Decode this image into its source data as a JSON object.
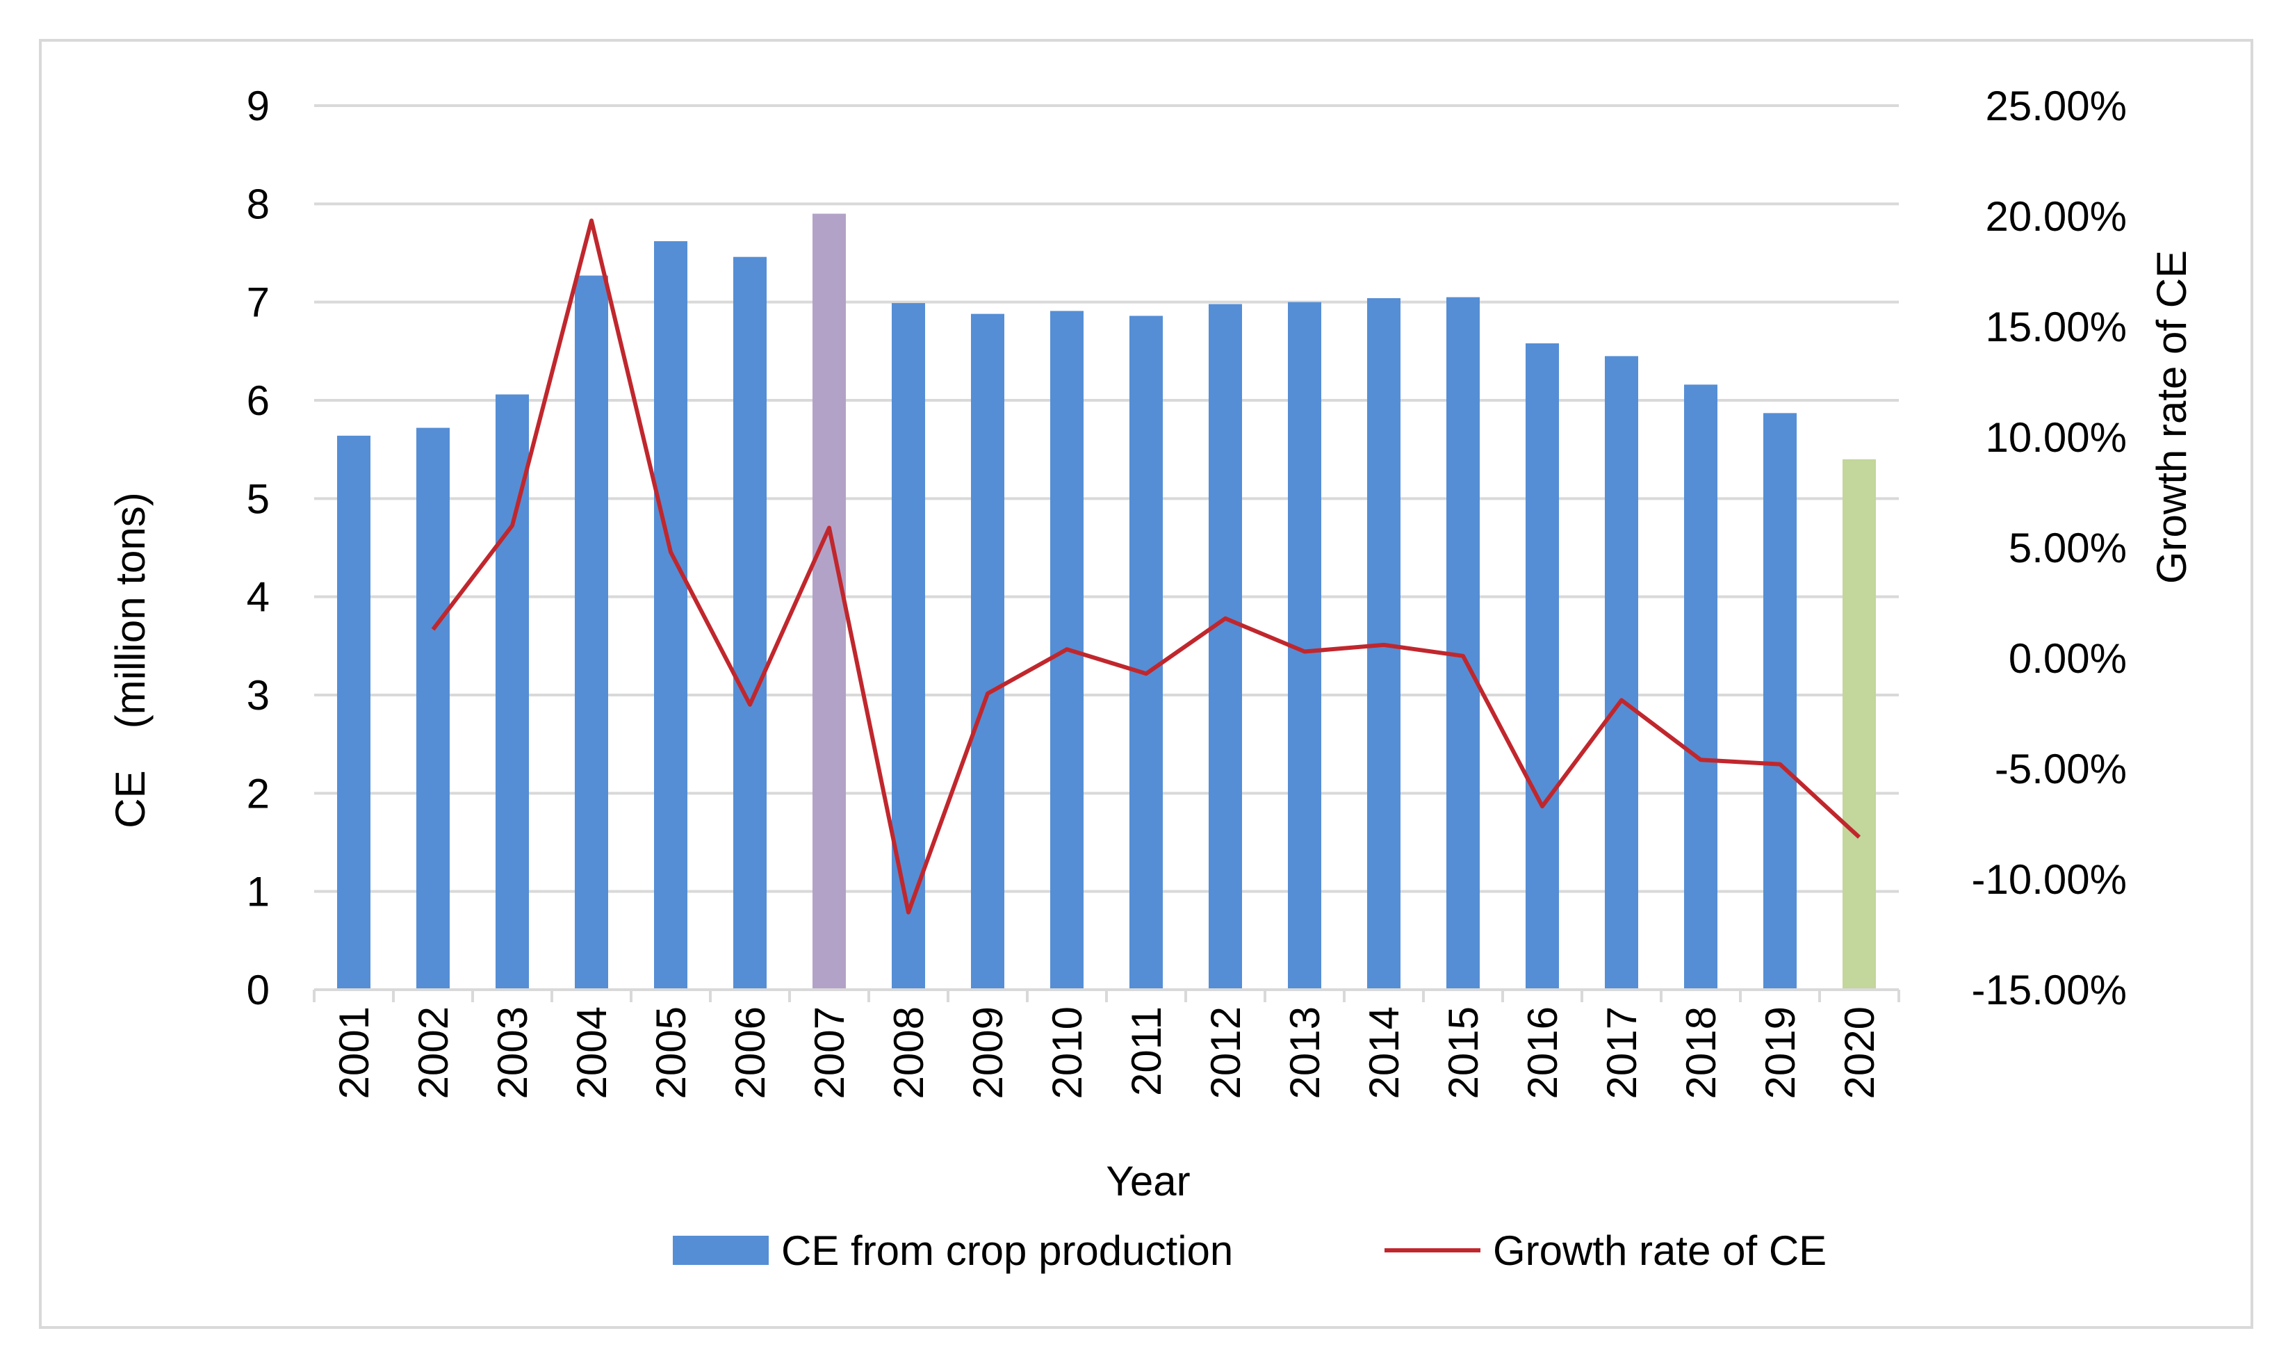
{
  "chart_data": {
    "type": "bar",
    "title": "",
    "xlabel": "Year",
    "ylabel": "CE　(million tons)",
    "y2label": "Growth rate of CE",
    "ylim": [
      0,
      9
    ],
    "y2lim": [
      -15,
      25
    ],
    "grid": true,
    "legend_position": "bottom",
    "categories": [
      "2001",
      "2002",
      "2003",
      "2004",
      "2005",
      "2006",
      "2007",
      "2008",
      "2009",
      "2010",
      "2011",
      "2012",
      "2013",
      "2014",
      "2015",
      "2016",
      "2017",
      "2018",
      "2019",
      "2020"
    ],
    "y_ticks": [
      "0",
      "1",
      "2",
      "3",
      "4",
      "5",
      "6",
      "7",
      "8",
      "9"
    ],
    "y2_ticks": [
      "-15.00%",
      "-10.00%",
      "-5.00%",
      "0.00%",
      "5.00%",
      "10.00%",
      "15.00%",
      "20.00%",
      "25.00%"
    ],
    "series": [
      {
        "name": "CE from crop production",
        "type": "bar",
        "axis": "left",
        "color": "#558ed5",
        "point_colors": {
          "2007": "#b3a2c7",
          "2020": "#c3d69b"
        },
        "values": [
          5.64,
          5.72,
          6.06,
          7.27,
          7.62,
          7.46,
          7.9,
          6.99,
          6.88,
          6.91,
          6.86,
          6.98,
          7.0,
          7.04,
          7.05,
          6.58,
          6.45,
          6.16,
          5.87,
          5.4
        ]
      },
      {
        "name": "Growth rate of CE",
        "type": "line",
        "axis": "right",
        "color": "#c0272d",
        "values": [
          null,
          1.3,
          6.0,
          19.8,
          4.8,
          -2.1,
          5.9,
          -11.5,
          -1.6,
          0.4,
          -0.7,
          1.8,
          0.3,
          0.6,
          0.1,
          -6.7,
          -1.9,
          -4.6,
          -4.8,
          -8.1
        ]
      }
    ]
  }
}
